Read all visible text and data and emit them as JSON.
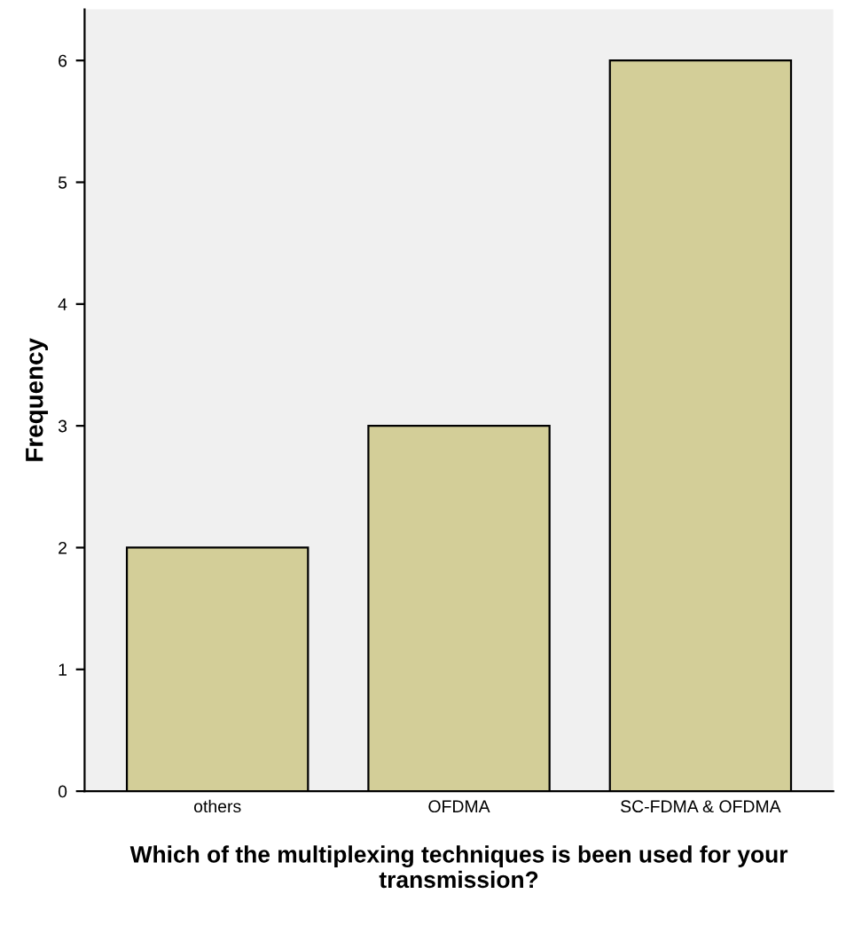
{
  "chart_data": {
    "type": "bar",
    "categories": [
      "others",
      "OFDMA",
      "SC-FDMA & OFDMA"
    ],
    "values": [
      2,
      3,
      6
    ],
    "color": "#d3ce98",
    "xlabel": "Which of the multiplexing techniques is been used for your transmission?",
    "ylabel": "Frequency",
    "ylim": [
      0,
      6.42
    ],
    "yticks": [
      0,
      1,
      2,
      3,
      4,
      5,
      6
    ],
    "grid": false
  }
}
